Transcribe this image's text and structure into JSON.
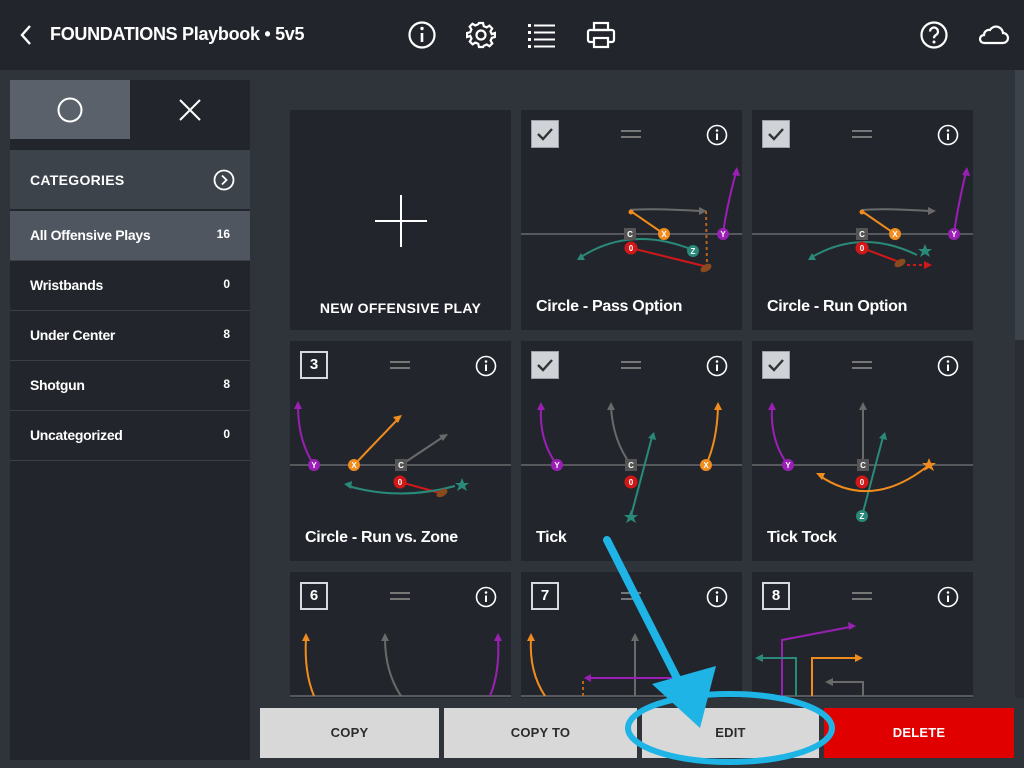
{
  "header": {
    "title": "FOUNDATIONS Playbook • 5v5",
    "icons": [
      "back-chevron-icon",
      "info-icon",
      "gear-icon",
      "list-icon",
      "printer-icon",
      "help-icon",
      "cloud-icon"
    ]
  },
  "sidebar": {
    "segments": [
      {
        "name": "circle-icon"
      },
      {
        "name": "close-icon"
      }
    ],
    "categories_label": "CATEGORIES",
    "items": [
      {
        "label": "All Offensive Plays",
        "count": "16"
      },
      {
        "label": "Wristbands",
        "count": "0"
      },
      {
        "label": "Under Center",
        "count": "8"
      },
      {
        "label": "Shotgun",
        "count": "8"
      },
      {
        "label": "Uncategorized",
        "count": "0"
      }
    ]
  },
  "grid": {
    "new_play_label": "NEW OFFENSIVE PLAY",
    "plays": [
      {
        "title": "Circle - Pass Option",
        "badge": "check"
      },
      {
        "title": "Circle - Run Option",
        "badge": "check"
      },
      {
        "title": "Circle - Run vs. Zone",
        "badge": "3"
      },
      {
        "title": "Tick",
        "badge": "check"
      },
      {
        "title": "Tick Tock",
        "badge": "check"
      },
      {
        "title": "",
        "badge": "6"
      },
      {
        "title": "",
        "badge": "7"
      },
      {
        "title": "",
        "badge": "8"
      }
    ],
    "player_labels": {
      "center": "C",
      "qb": "0",
      "x": "X",
      "y": "Y",
      "z": "Z"
    }
  },
  "actions": {
    "copy": "COPY",
    "copy_to": "COPY TO",
    "edit": "EDIT",
    "delete": "DELETE"
  },
  "colors": {
    "accent_delete": "#e00000",
    "annotation": "#1eb4e6",
    "route_x": "#f08c1e",
    "route_y": "#9a1fb4",
    "route_z": "#2a8a7a",
    "route_c": "#6a6a6a",
    "qb": "#d01818"
  }
}
